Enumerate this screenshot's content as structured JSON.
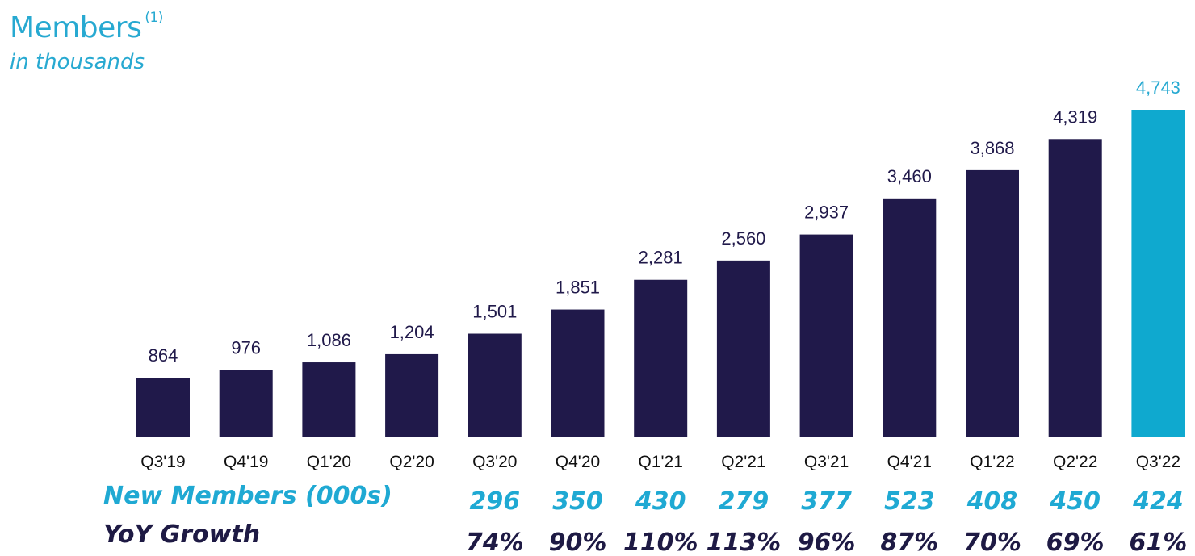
{
  "header": {
    "title": "Members",
    "footnote_marker": "(1)",
    "subtitle": "in thousands"
  },
  "colors": {
    "bar": "#20194a",
    "highlight_bar": "#0fa9cf",
    "value_label": "#20194a",
    "highlight_value_label": "#27a9d1",
    "new_members_text": "#1fa9d3",
    "yoy_text": "#1e1a44"
  },
  "chart_data": {
    "type": "bar",
    "categories": [
      "Q3'19",
      "Q4'19",
      "Q1'20",
      "Q2'20",
      "Q3'20",
      "Q4'20",
      "Q1'21",
      "Q2'21",
      "Q3'21",
      "Q4'21",
      "Q1'22",
      "Q2'22",
      "Q3'22"
    ],
    "values": [
      864,
      976,
      1086,
      1204,
      1501,
      1851,
      2281,
      2560,
      2937,
      3460,
      3868,
      4319,
      4743
    ],
    "value_labels": [
      "864",
      "976",
      "1,086",
      "1,204",
      "1,501",
      "1,851",
      "2,281",
      "2,560",
      "2,937",
      "3,460",
      "3,868",
      "4,319",
      "4,743"
    ],
    "highlight_index": 12,
    "ylim": [
      0,
      4743
    ],
    "grid": false
  },
  "rows": {
    "new_members": {
      "label": "New Members (000s)",
      "start_index": 4,
      "values": [
        "296",
        "350",
        "430",
        "279",
        "377",
        "523",
        "408",
        "450",
        "424"
      ]
    },
    "yoy_growth": {
      "label": "YoY Growth",
      "start_index": 4,
      "values": [
        "74%",
        "90%",
        "110%",
        "113%",
        "96%",
        "87%",
        "70%",
        "69%",
        "61%"
      ]
    }
  }
}
